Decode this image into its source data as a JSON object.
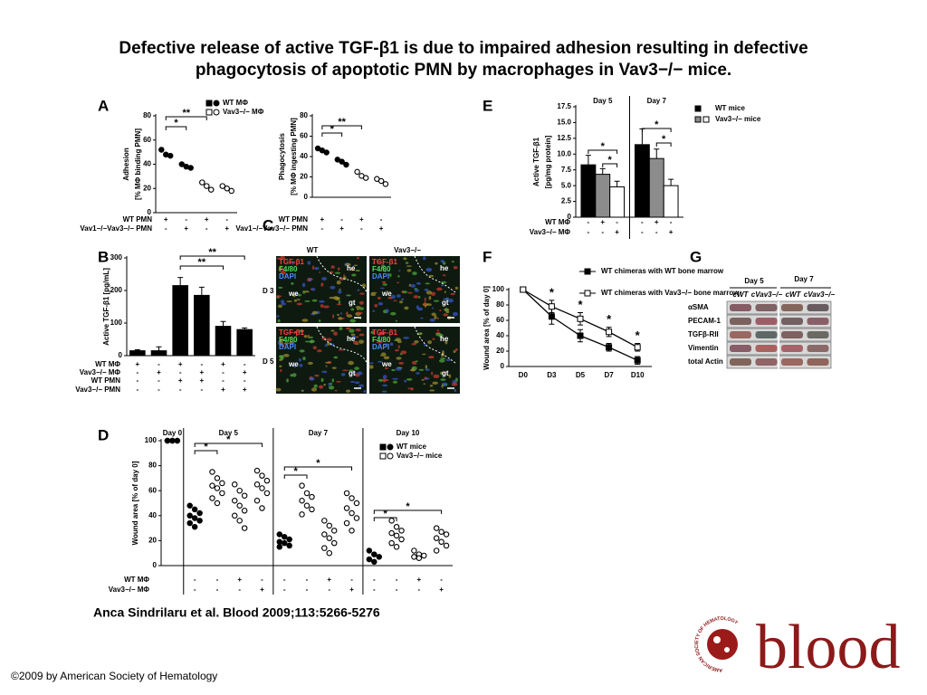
{
  "title": "Defective release of active TGF-β1 is due to impaired adhesion resulting in defective phagocytosis of apoptotic PMN by macrophages in Vav3−/− mice.",
  "panel_labels": [
    "A",
    "B",
    "C",
    "D",
    "E",
    "F",
    "G"
  ],
  "chart_data": [
    {
      "type": "dot",
      "ylabel_lines": [
        "Adhesion",
        "[% MΦ binding PMN]"
      ],
      "ylim": [
        0,
        80
      ],
      "yticks": [
        0,
        20,
        40,
        60,
        80
      ],
      "categories": [
        null,
        null,
        null,
        null
      ],
      "series": [
        {
          "name": "WT MΦ",
          "color": "#000000",
          "filled": true,
          "values": [
            [
              52,
              48,
              47
            ],
            [
              40,
              38,
              37
            ],
            null,
            null
          ]
        },
        {
          "name": "Vav3−/− MΦ",
          "color": "#000000",
          "filled": false,
          "values": [
            null,
            null,
            [
              25,
              22,
              19
            ],
            [
              22,
              20,
              18
            ]
          ]
        }
      ],
      "conditions": [
        {
          "name": "WT PMN",
          "values": [
            "+",
            "-",
            "+",
            "-"
          ]
        },
        {
          "name": "Vav1−/−Vav3−/− PMN",
          "values": [
            "-",
            "+",
            "-",
            "+"
          ]
        }
      ],
      "significance": [
        "*",
        "**"
      ]
    },
    {
      "type": "dot",
      "ylabel_lines": [
        "Phagocytosis",
        "[% MΦ ingesting PMN]"
      ],
      "ylim": [
        0,
        80
      ],
      "yticks": [
        0,
        20,
        40,
        60,
        80
      ],
      "categories": [
        null,
        null,
        null,
        null
      ],
      "series": [
        {
          "color": "#000000",
          "filled": true,
          "values": [
            [
              48,
              46,
              44
            ],
            [
              37,
              35,
              32
            ],
            null,
            null
          ]
        },
        {
          "color": "#000000",
          "filled": false,
          "values": [
            null,
            null,
            [
              25,
              21,
              19
            ],
            [
              18,
              16,
              13
            ]
          ]
        }
      ],
      "conditions": [
        {
          "name": "WT PMN",
          "values": [
            "+",
            "-",
            "+",
            "-"
          ]
        },
        {
          "name": "Vav1−/−Vav3−/− PMN",
          "values": [
            "-",
            "+",
            "-",
            "+"
          ]
        }
      ],
      "significance": [
        "*",
        "**"
      ]
    },
    {
      "type": "bar",
      "ylabel": "Active TGF-β1 [pg/mL]",
      "ylim": [
        0,
        300
      ],
      "yticks": [
        0,
        100,
        200,
        300
      ],
      "categories": [
        null,
        null,
        null,
        null,
        null,
        null
      ],
      "values": [
        15,
        15,
        215,
        185,
        90,
        80
      ],
      "errors": [
        3,
        12,
        25,
        25,
        15,
        5
      ],
      "color": "#000000",
      "conditions": [
        {
          "name": "WT MΦ",
          "values": [
            "+",
            "-",
            "+",
            "-",
            "+",
            "-"
          ]
        },
        {
          "name": "Vav3−/− MΦ",
          "values": [
            "-",
            "+",
            "-",
            "+",
            "-",
            "+"
          ]
        },
        {
          "name": "WT PMN",
          "values": [
            "-",
            "-",
            "+",
            "+",
            "-",
            "-"
          ]
        },
        {
          "name": "Vav3−/− PMN",
          "values": [
            "-",
            "-",
            "-",
            "-",
            "+",
            "+"
          ]
        }
      ],
      "significance": [
        "**",
        "**"
      ]
    },
    {
      "type": "bar",
      "ylabel_lines": [
        "Active TGF-β1",
        "[pg/mg protein]"
      ],
      "ylim": [
        0,
        17.5
      ],
      "yticks": [
        0,
        2.5,
        {
          "value": 5,
          "label": "5.0"
        },
        7.5,
        {
          "value": 10,
          "label": "10.0"
        },
        12.5,
        {
          "value": 15,
          "label": "15.0"
        },
        17.5
      ],
      "categories": [
        "Day 5",
        "Day 7"
      ],
      "series": [
        {
          "color": "#000000",
          "values": [
            8.3,
            11.5
          ],
          "errors": [
            1.5,
            2.5
          ]
        },
        {
          "color": "#8c8c8c",
          "values": [
            6.8,
            9.3
          ],
          "errors": [
            0.9,
            1.5
          ]
        },
        {
          "color": "#ffffff",
          "values": [
            4.8,
            5.0
          ],
          "errors": [
            0.9,
            1.0
          ]
        }
      ],
      "legend": [
        "WT mice",
        "Vav3−/− mice"
      ],
      "conditions": [
        {
          "name": "WT MΦ",
          "values": [
            "-",
            "+",
            "-",
            "-",
            "+",
            "-"
          ]
        },
        {
          "name": "Vav3−/− MΦ",
          "values": [
            "-",
            "-",
            "+",
            "-",
            "-",
            "+"
          ]
        }
      ],
      "significance": [
        "*",
        "*",
        "*",
        "*"
      ]
    },
    {
      "type": "line",
      "ylabel": "Wound area [% of day 0]",
      "ylim": [
        0,
        100
      ],
      "yticks": [
        0,
        20,
        40,
        60,
        80,
        100
      ],
      "categories": [
        "D0",
        "D3",
        "D5",
        "D7",
        "D10"
      ],
      "series": [
        {
          "name": "WT chimeras with WT bone marrow",
          "color": "#000000",
          "filled": true,
          "values": [
            100,
            65,
            40,
            25,
            8
          ],
          "errors": [
            0,
            10,
            8,
            5,
            5
          ]
        },
        {
          "name": "WT chimeras with Vav3−/− bone marrow",
          "color": "#000000",
          "filled": false,
          "values": [
            100,
            78,
            62,
            45,
            25
          ],
          "errors": [
            0,
            8,
            8,
            6,
            5
          ]
        }
      ],
      "significance": [
        "*",
        "*",
        "*",
        "*"
      ]
    },
    {
      "type": "dot",
      "ylabel": "Wound area [% of day 0]",
      "ylim": [
        0,
        100
      ],
      "yticks": [
        0,
        20,
        40,
        60,
        80,
        100
      ],
      "groups": [
        "Day 0",
        "Day 5",
        "Day 7",
        "Day 10"
      ],
      "categories": [
        null,
        null,
        null,
        null,
        null,
        null,
        null,
        null,
        null,
        null,
        null,
        null,
        null
      ],
      "series": [
        {
          "name": "WT mice",
          "color": "#000000",
          "filled": true,
          "values": [
            [
              100,
              100,
              100,
              100,
              100,
              100
            ],
            [
              48,
              45,
              42,
              40,
              38,
              36,
              34,
              31
            ],
            null,
            null,
            null,
            [
              25,
              23,
              21,
              19,
              18,
              16,
              15
            ],
            null,
            null,
            null,
            [
              12,
              9,
              7,
              5,
              3
            ],
            null,
            null,
            null
          ]
        },
        {
          "name": "Vav3−/− mice",
          "color": "#000000",
          "filled": false,
          "values": [
            null,
            null,
            [
              75,
              70,
              66,
              64,
              62,
              58,
              54,
              50
            ],
            [
              65,
              60,
              56,
              52,
              48,
              44,
              40,
              36,
              30
            ],
            [
              76,
              72,
              68,
              65,
              62,
              58,
              52,
              46
            ],
            null,
            [
              64,
              58,
              55,
              52,
              48,
              45,
              41
            ],
            [
              36,
              32,
              28,
              25,
              22,
              18,
              14,
              10
            ],
            [
              58,
              54,
              50,
              46,
              42,
              38,
              34,
              28
            ],
            null,
            [
              36,
              31,
              28,
              26,
              24,
              21,
              18,
              15
            ],
            [
              12,
              9,
              8,
              7,
              6
            ],
            [
              30,
              27,
              25,
              22,
              19,
              16,
              12
            ]
          ]
        }
      ],
      "conditions": [
        {
          "name": "WT MΦ",
          "values": [
            null,
            "-",
            "-",
            "+",
            "-",
            "-",
            "-",
            "+",
            "-",
            "-",
            "-",
            "+",
            "-"
          ]
        },
        {
          "name": "Vav3−/− MΦ",
          "values": [
            null,
            "-",
            "-",
            "-",
            "+",
            "-",
            "-",
            "-",
            "+",
            "-",
            "-",
            "-",
            "+"
          ]
        }
      ],
      "significance": [
        "*",
        "*",
        "*",
        "*",
        "*",
        "*"
      ]
    }
  ],
  "panel_c": {
    "columns": [
      "WT",
      "Vav3−/−"
    ],
    "rows": [
      "D 3",
      "D 5"
    ],
    "stains": [
      "TGF-β1",
      "F4/80",
      "DAPI"
    ],
    "regions": [
      "he",
      "we",
      "gt"
    ]
  },
  "panel_g": {
    "days": [
      "Day 5",
      "Day 7"
    ],
    "lanes": [
      "cWT",
      "cVav3−/−",
      "cWT",
      "cVav3−/−"
    ],
    "proteins": [
      "αSMA",
      "PECAM-1",
      "TGFβ-RII",
      "Vimentin",
      "total Actin"
    ]
  },
  "citation": "Anca Sindrilaru et al. Blood 2009;113:5266-5276",
  "copyright": "©2009 by American Society of Hematology",
  "logo": {
    "word": "blood",
    "society": "AMERICAN SOCIETY OF HEMATOLOGY"
  }
}
